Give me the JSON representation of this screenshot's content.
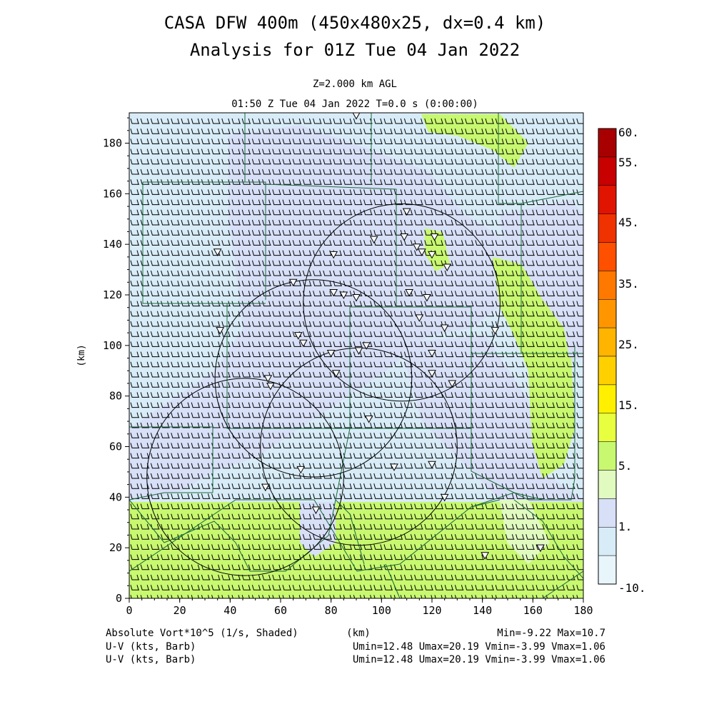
{
  "header": {
    "title_line1": "CASA DFW 400m (450x480x25, dx=0.4 km)",
    "title_line2": "Analysis for 01Z Tue 04 Jan 2022",
    "level": "Z=2.000 km AGL",
    "valid": "01:50 Z Tue 04 Jan 2022    T=0.0 s (0:00:00)"
  },
  "footer": {
    "shaded_label": "Absolute Vort*10^5 (1/s, Shaded)",
    "km_label": "(km)",
    "minmax": "Min=-9.22 Max=10.7",
    "barb_label_1": "U-V (kts, Barb)",
    "barb_stats_1": "Umin=12.48 Umax=20.19 Vmin=-3.99 Vmax=1.06",
    "barb_label_2": "U-V (kts, Barb)",
    "barb_stats_2": "Umin=12.48 Umax=20.19 Vmin=-3.99 Vmax=1.06"
  },
  "chart_data": {
    "type": "heatmap",
    "xlabel": "",
    "ylabel": "(km)",
    "xlim": [
      0,
      180
    ],
    "ylim": [
      0,
      192
    ],
    "x_ticks": [
      0,
      20,
      40,
      60,
      80,
      100,
      120,
      140,
      160,
      180
    ],
    "y_ticks": [
      0,
      20,
      40,
      60,
      80,
      100,
      120,
      140,
      160,
      180
    ],
    "colorbar": {
      "labels": [
        "60.",
        "55.",
        "45.",
        "35.",
        "25.",
        "15.",
        "5.",
        "1.",
        "-10."
      ],
      "colors": [
        "#a80000",
        "#c80000",
        "#e01400",
        "#f03200",
        "#ff5000",
        "#ff7800",
        "#ff9600",
        "#ffb400",
        "#ffd000",
        "#fff000",
        "#e8ff40",
        "#c8f870",
        "#e0fac0",
        "#d8e0f8",
        "#d8ecf8",
        "#e8f6fc"
      ]
    },
    "radar_rings": [
      {
        "cx": 108,
        "cy": 117,
        "r": 39
      },
      {
        "cx": 73,
        "cy": 87,
        "r": 39
      },
      {
        "cx": 91,
        "cy": 60,
        "r": 39
      },
      {
        "cx": 46,
        "cy": 48,
        "r": 39
      }
    ],
    "stations": [
      [
        90,
        191
      ],
      [
        110,
        153
      ],
      [
        109,
        143
      ],
      [
        121,
        143
      ],
      [
        97,
        142
      ],
      [
        114,
        139
      ],
      [
        116,
        137
      ],
      [
        120,
        136
      ],
      [
        81,
        136
      ],
      [
        126,
        131
      ],
      [
        65,
        125
      ],
      [
        81,
        121
      ],
      [
        85,
        120
      ],
      [
        90,
        119
      ],
      [
        111,
        121
      ],
      [
        118,
        119
      ],
      [
        67,
        104
      ],
      [
        69,
        101
      ],
      [
        80,
        97
      ],
      [
        91,
        98
      ],
      [
        94,
        100
      ],
      [
        120,
        97
      ],
      [
        115,
        111
      ],
      [
        125,
        107
      ],
      [
        145,
        106
      ],
      [
        120,
        89
      ],
      [
        82,
        89
      ],
      [
        55,
        87
      ],
      [
        56,
        84
      ],
      [
        128,
        85
      ],
      [
        95,
        71
      ],
      [
        68,
        51
      ],
      [
        105,
        52
      ],
      [
        120,
        53
      ],
      [
        54,
        44
      ],
      [
        74,
        35
      ],
      [
        125,
        40
      ],
      [
        141,
        17
      ],
      [
        163,
        20
      ],
      [
        35,
        137
      ],
      [
        36,
        106
      ]
    ]
  }
}
